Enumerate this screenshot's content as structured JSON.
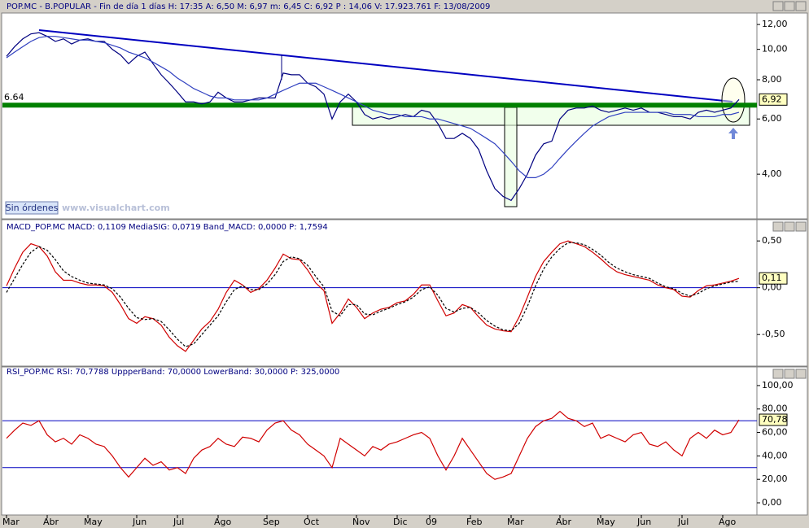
{
  "chart_data": [
    {
      "type": "line",
      "log": true,
      "title": "POP.MC - B.POPULAR - Fin de día 1 días H: 17:35  A: 6,50  M: 6,97  m: 6,45  C: 6,92  P : 14,06  V: 17.923.761  F: 13/08/2009",
      "categories": [
        "Mar",
        null,
        null,
        null,
        null,
        "Abr",
        null,
        null,
        null,
        null,
        "May",
        null,
        null,
        null,
        null,
        null,
        "Jun",
        null,
        null,
        null,
        null,
        "Jul",
        null,
        null,
        null,
        null,
        "Ago",
        null,
        null,
        null,
        null,
        null,
        "Sep",
        null,
        null,
        null,
        null,
        "Oct",
        null,
        null,
        null,
        null,
        null,
        "Nov",
        null,
        null,
        null,
        null,
        "Dic",
        null,
        null,
        null,
        "09",
        null,
        null,
        null,
        null,
        "Feb",
        null,
        null,
        null,
        null,
        "Mar",
        null,
        null,
        null,
        null,
        null,
        "Abr",
        null,
        null,
        null,
        null,
        "May",
        null,
        null,
        null,
        null,
        "Jun",
        null,
        null,
        null,
        null,
        "Jul",
        null,
        null,
        null,
        null,
        "Ago",
        null,
        null
      ],
      "series": [
        {
          "color": "#000080",
          "values": [
            9.5,
            10.2,
            10.8,
            11.2,
            11.3,
            11.0,
            10.6,
            10.8,
            10.4,
            10.7,
            10.8,
            10.6,
            10.6,
            10.0,
            9.6,
            9.0,
            9.5,
            9.8,
            9.0,
            8.3,
            7.8,
            7.3,
            6.8,
            6.8,
            6.7,
            6.8,
            7.3,
            7.0,
            6.8,
            6.8,
            6.9,
            7.0,
            7.0,
            7.0,
            8.4,
            8.3,
            8.3,
            7.8,
            7.6,
            7.2,
            6.0,
            6.8,
            7.2,
            6.8,
            6.2,
            6.0,
            6.1,
            6.0,
            6.1,
            6.2,
            6.1,
            6.4,
            6.3,
            5.8,
            5.2,
            5.2,
            5.4,
            5.2,
            4.8,
            4.1,
            3.6,
            3.4,
            3.3,
            3.6,
            4.0,
            4.6,
            5.0,
            5.1,
            6.0,
            6.4,
            6.5,
            6.5,
            6.6,
            6.4,
            6.3,
            6.4,
            6.5,
            6.4,
            6.5,
            6.3,
            6.3,
            6.2,
            6.1,
            6.1,
            6.0,
            6.3,
            6.4,
            6.3,
            6.4,
            6.5,
            6.92
          ]
        },
        {
          "color": "#3040c0",
          "values": [
            9.4,
            9.8,
            10.2,
            10.6,
            10.9,
            11.0,
            11.0,
            10.9,
            10.8,
            10.7,
            10.7,
            10.6,
            10.5,
            10.3,
            10.1,
            9.8,
            9.6,
            9.4,
            9.1,
            8.8,
            8.5,
            8.1,
            7.8,
            7.5,
            7.3,
            7.1,
            7.0,
            7.0,
            6.9,
            6.9,
            6.9,
            6.9,
            7.0,
            7.2,
            7.4,
            7.6,
            7.8,
            7.8,
            7.8,
            7.6,
            7.4,
            7.2,
            7.0,
            6.8,
            6.6,
            6.4,
            6.3,
            6.2,
            6.2,
            6.1,
            6.1,
            6.1,
            6.0,
            6.0,
            5.9,
            5.8,
            5.7,
            5.6,
            5.4,
            5.2,
            5.0,
            4.7,
            4.4,
            4.1,
            3.9,
            3.9,
            4.0,
            4.2,
            4.5,
            4.8,
            5.1,
            5.4,
            5.7,
            5.9,
            6.1,
            6.2,
            6.3,
            6.3,
            6.3,
            6.3,
            6.3,
            6.3,
            6.2,
            6.2,
            6.2,
            6.1,
            6.1,
            6.1,
            6.2,
            6.2,
            6.3
          ]
        }
      ],
      "ylim": [
        2.9,
        12.9
      ],
      "yticks": [
        {
          "value": 12,
          "label": "12,00"
        },
        {
          "value": 10,
          "label": "10,00"
        },
        {
          "value": 8,
          "label": "8,00"
        },
        {
          "value": 6,
          "label": "6,00"
        },
        {
          "value": 4,
          "label": "4,00"
        }
      ],
      "hline": {
        "value": 6.64,
        "label": "6.64",
        "color": "#008000"
      },
      "last_label": "6,92",
      "button": "Sin órdenes",
      "watermark": "www.visualchart.com"
    },
    {
      "type": "line",
      "title": "MACD_POP.MC  MACD: 0,1109  MediaSIG: 0,0719  Band_MACD: 0,0000  P: 1,7594",
      "series": [
        {
          "color": "#d00000",
          "values": [
            0.02,
            0.21,
            0.38,
            0.47,
            0.44,
            0.34,
            0.17,
            0.08,
            0.08,
            0.05,
            0.03,
            0.03,
            0.02,
            -0.05,
            -0.18,
            -0.33,
            -0.38,
            -0.31,
            -0.33,
            -0.4,
            -0.53,
            -0.62,
            -0.68,
            -0.56,
            -0.44,
            -0.36,
            -0.23,
            -0.05,
            0.08,
            0.03,
            -0.05,
            -0.01,
            0.08,
            0.21,
            0.36,
            0.31,
            0.3,
            0.19,
            0.05,
            -0.03,
            -0.38,
            -0.27,
            -0.12,
            -0.21,
            -0.33,
            -0.27,
            -0.23,
            -0.21,
            -0.16,
            -0.14,
            -0.07,
            0.03,
            0.03,
            -0.14,
            -0.3,
            -0.27,
            -0.18,
            -0.21,
            -0.31,
            -0.4,
            -0.44,
            -0.46,
            -0.47,
            -0.31,
            -0.1,
            0.12,
            0.28,
            0.38,
            0.47,
            0.5,
            0.47,
            0.44,
            0.38,
            0.31,
            0.23,
            0.17,
            0.14,
            0.12,
            0.1,
            0.08,
            0.03,
            0.0,
            -0.02,
            -0.09,
            -0.1,
            -0.03,
            0.02,
            0.03,
            0.05,
            0.07,
            0.1
          ]
        },
        {
          "color": "#000000",
          "dashed": true,
          "values": [
            -0.05,
            0.1,
            0.25,
            0.38,
            0.44,
            0.4,
            0.3,
            0.18,
            0.12,
            0.08,
            0.05,
            0.04,
            0.03,
            -0.01,
            -0.1,
            -0.22,
            -0.32,
            -0.34,
            -0.33,
            -0.36,
            -0.45,
            -0.55,
            -0.63,
            -0.6,
            -0.5,
            -0.4,
            -0.3,
            -0.15,
            -0.02,
            0.02,
            -0.02,
            -0.02,
            0.04,
            0.14,
            0.28,
            0.33,
            0.31,
            0.24,
            0.12,
            0.01,
            -0.25,
            -0.3,
            -0.18,
            -0.18,
            -0.28,
            -0.29,
            -0.25,
            -0.22,
            -0.18,
            -0.15,
            -0.1,
            -0.02,
            0.01,
            -0.08,
            -0.22,
            -0.26,
            -0.22,
            -0.21,
            -0.27,
            -0.35,
            -0.41,
            -0.45,
            -0.46,
            -0.38,
            -0.2,
            0.02,
            0.2,
            0.33,
            0.42,
            0.48,
            0.48,
            0.46,
            0.41,
            0.35,
            0.27,
            0.21,
            0.17,
            0.14,
            0.12,
            0.1,
            0.05,
            0.01,
            -0.01,
            -0.06,
            -0.09,
            -0.06,
            -0.01,
            0.02,
            0.04,
            0.06,
            0.07
          ]
        }
      ],
      "ylim": [
        -0.82,
        0.71
      ],
      "yticks": [
        {
          "value": 0.5,
          "label": "0,50"
        },
        {
          "value": 0,
          "label": "0,00"
        },
        {
          "value": -0.5,
          "label": "-0,50"
        }
      ],
      "hlines": [
        0
      ],
      "last_label": "0,11"
    },
    {
      "type": "line",
      "title": "RSI_POP.MC  RSI: 70,7788  UppperBand: 70,0000  LowerBand: 30,0000  P: 325,0000",
      "series": [
        {
          "color": "#d00000",
          "values": [
            55,
            62,
            68,
            66,
            70,
            58,
            52,
            55,
            50,
            58,
            55,
            50,
            48,
            40,
            30,
            22,
            30,
            38,
            32,
            35,
            28,
            30,
            25,
            38,
            45,
            48,
            55,
            50,
            48,
            56,
            55,
            52,
            62,
            68,
            70,
            62,
            58,
            50,
            45,
            40,
            30,
            55,
            50,
            45,
            40,
            48,
            45,
            50,
            52,
            55,
            58,
            60,
            55,
            40,
            28,
            40,
            55,
            45,
            35,
            25,
            20,
            22,
            25,
            40,
            55,
            65,
            70,
            72,
            78,
            72,
            70,
            65,
            68,
            55,
            58,
            55,
            52,
            58,
            60,
            50,
            48,
            52,
            45,
            40,
            55,
            60,
            55,
            62,
            58,
            60,
            70.78
          ]
        }
      ],
      "ylim": [
        -9.7,
        115.2
      ],
      "yticks": [
        {
          "value": 100,
          "label": "100,00"
        },
        {
          "value": 80,
          "label": "80,00"
        },
        {
          "value": 60,
          "label": "60,00"
        },
        {
          "value": 40,
          "label": "40,00"
        },
        {
          "value": 20,
          "label": "20,00"
        },
        {
          "value": 0,
          "label": "0,00"
        }
      ],
      "hlines": [
        70,
        30
      ],
      "last_label": "70,78"
    }
  ]
}
